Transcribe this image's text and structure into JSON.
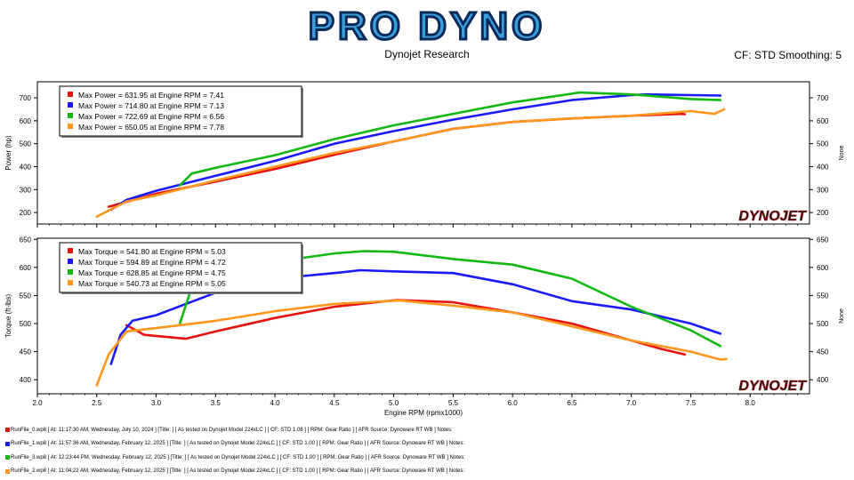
{
  "header": {
    "logo_text": "PRO DYNO",
    "subtitle": "Dynojet Research",
    "cf_smoothing": "CF: STD Smoothing: 5"
  },
  "colors": {
    "red": "#e8120f",
    "blue": "#1a1aff",
    "green": "#14b814",
    "orange": "#ff961e"
  },
  "chart_data": [
    {
      "type": "line",
      "ylabel": "Power (hp)",
      "right_label": "None",
      "xlim": [
        2.0,
        8.5
      ],
      "ylim": [
        150,
        770
      ],
      "yticks": [
        200,
        300,
        400,
        500,
        600,
        700
      ],
      "watermark": "DYNOJET",
      "legend": [
        "Max Power = 631.95 at Engine RPM = 7.41",
        "Max Power = 714.80 at Engine RPM = 7.13",
        "Max Power = 722.69 at Engine RPM = 6.56",
        "Max Power = 650.05 at Engine RPM = 7.78"
      ],
      "series": [
        {
          "color": "red",
          "x": [
            2.6,
            3.0,
            3.5,
            4.0,
            4.5,
            5.0,
            5.5,
            6.0,
            6.5,
            7.0,
            7.41,
            7.45
          ],
          "y": [
            225,
            282,
            335,
            390,
            452,
            510,
            565,
            595,
            610,
            622,
            630,
            628
          ]
        },
        {
          "color": "blue",
          "x": [
            2.62,
            2.75,
            3.0,
            3.5,
            4.0,
            4.5,
            5.0,
            5.5,
            6.0,
            6.5,
            7.0,
            7.13,
            7.5,
            7.75
          ],
          "y": [
            212,
            255,
            295,
            360,
            425,
            500,
            555,
            605,
            650,
            690,
            712,
            715,
            712,
            710
          ]
        },
        {
          "color": "green",
          "x": [
            3.2,
            3.3,
            3.5,
            4.0,
            4.5,
            5.0,
            5.5,
            6.0,
            6.5,
            6.56,
            7.0,
            7.5,
            7.75
          ],
          "y": [
            318,
            370,
            395,
            450,
            520,
            580,
            630,
            680,
            718,
            723,
            715,
            695,
            690
          ]
        },
        {
          "color": "orange",
          "x": [
            2.5,
            2.75,
            3.0,
            3.5,
            4.0,
            4.5,
            5.0,
            5.5,
            6.0,
            6.5,
            7.0,
            7.5,
            7.7,
            7.78
          ],
          "y": [
            182,
            248,
            275,
            340,
            400,
            460,
            510,
            565,
            595,
            610,
            622,
            642,
            630,
            650
          ]
        }
      ]
    },
    {
      "type": "line",
      "ylabel": "Torque (ft-lbs)",
      "right_label": "None",
      "xlabel": "Engine RPM (rpmx1000)",
      "xlim": [
        2.0,
        8.5
      ],
      "ylim": [
        375,
        652
      ],
      "xticks": [
        2.0,
        2.5,
        3.0,
        3.5,
        4.0,
        4.5,
        5.0,
        5.5,
        6.0,
        6.5,
        7.0,
        7.5,
        8.0
      ],
      "xtick_labels": [
        "2.0",
        "2.5",
        "3.0",
        "3.5",
        "4.0",
        "4.5",
        "5.0",
        "5.5",
        "6.0",
        "6.5",
        "7.0",
        "7.5",
        "8.0"
      ],
      "yticks": [
        400,
        450,
        500,
        550,
        600,
        650
      ],
      "watermark": "DYNOJET",
      "legend": [
        "Max Torque = 541.80 at Engine RPM = 5.03",
        "Max Torque = 594.89 at Engine RPM = 4.72",
        "Max Torque = 628.85 at Engine RPM = 4.75",
        "Max Torque = 540.73 at Engine RPM = 5.05"
      ],
      "series": [
        {
          "color": "red",
          "x": [
            2.75,
            2.9,
            3.0,
            3.25,
            3.5,
            4.0,
            4.5,
            5.03,
            5.5,
            6.0,
            6.5,
            7.0,
            7.25,
            7.45
          ],
          "y": [
            497,
            480,
            478,
            473,
            486,
            510,
            530,
            542,
            538,
            520,
            500,
            470,
            455,
            445
          ]
        },
        {
          "color": "blue",
          "x": [
            2.62,
            2.7,
            2.8,
            3.0,
            3.5,
            4.0,
            4.5,
            4.72,
            5.0,
            5.5,
            6.0,
            6.5,
            7.0,
            7.5,
            7.75
          ],
          "y": [
            428,
            480,
            505,
            515,
            555,
            580,
            590,
            595,
            593,
            590,
            570,
            540,
            525,
            500,
            482
          ]
        },
        {
          "color": "green",
          "x": [
            3.2,
            3.3,
            3.5,
            4.0,
            4.5,
            4.75,
            5.0,
            5.5,
            6.0,
            6.5,
            7.0,
            7.5,
            7.75
          ],
          "y": [
            500,
            565,
            590,
            610,
            625,
            629,
            628,
            615,
            605,
            580,
            530,
            488,
            460
          ]
        },
        {
          "color": "orange",
          "x": [
            2.5,
            2.6,
            2.75,
            3.0,
            3.5,
            4.0,
            4.5,
            5.05,
            5.5,
            6.0,
            6.5,
            7.0,
            7.5,
            7.75,
            7.8
          ],
          "y": [
            390,
            445,
            486,
            492,
            505,
            522,
            535,
            541,
            532,
            520,
            495,
            470,
            450,
            436,
            437
          ]
        }
      ]
    }
  ],
  "runs": [
    {
      "color": "red",
      "text": "RunFile_0.wp8 [ At: 11:17:30 AM, Wednesday, July 10, 2024 ] [Title: ]  [ As tested on Dynojet Model 224xLC ] [ CF: STD 1.08 ] [ RPM: Gear Ratio ] [ AFR Source: Dynoware RT WB ] Notes:"
    },
    {
      "color": "blue",
      "text": "RunFile_1.wp8 [ At: 11:57:36 AM, Wednesday, February 12, 2025 ] [Title: ]  [ As tested on Dynojet Model 224xLC ] [ CF: STD 1.00 ] [ RPM: Gear Ratio ] [ AFR Source: Dynoware RT WB ] Notes:"
    },
    {
      "color": "green",
      "text": "RunFile_3.wp8 [ At: 12:23:44 PM, Wednesday, February 12, 2025 ] [Title: ]  [ As tested on Dynojet Model 224xLC ] [ CF: STD 1.00 ] [ RPM: Gear Ratio ] [ AFR Source: Dynoware RT WB ] Notes:"
    },
    {
      "color": "orange",
      "text": "RunFile_2.wp8 [ At: 11:04:22 AM, Wednesday, February 12, 2025 ] [Title: ]  [ As tested on Dynojet Model 224xLC ] [ CF: STD 1.00 ] [ RPM: Gear Ratio ] [ AFR Source: Dynoware RT WB ] Notes:"
    }
  ]
}
